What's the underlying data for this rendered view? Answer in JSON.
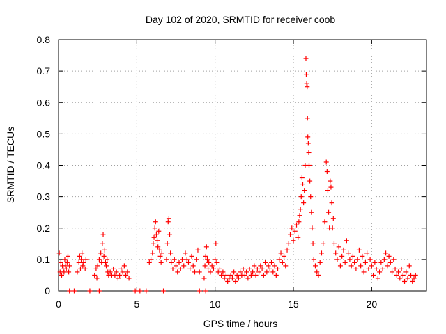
{
  "chart_data": {
    "type": "scatter",
    "title": "Day 102 of 2020, SRMTID for receiver coob",
    "xlabel": "GPS time / hours",
    "ylabel": "SRMTID / TECUs",
    "xlim": [
      0,
      23.5
    ],
    "ylim": [
      0,
      0.8
    ],
    "xticks": [
      0,
      5,
      10,
      15,
      20
    ],
    "yticks": [
      0,
      0.1,
      0.2,
      0.3,
      0.4,
      0.5,
      0.6,
      0.7,
      0.8
    ],
    "xtick_labels": [
      "0",
      "5",
      "10",
      "15",
      "20"
    ],
    "ytick_labels": [
      "0",
      "0.1",
      "0.2",
      "0.3",
      "0.4",
      "0.5",
      "0.6",
      "0.7",
      "0.8"
    ],
    "grid": true,
    "marker": "+",
    "series": [
      {
        "name": "SRMTID",
        "color": "#ff0000",
        "points": [
          [
            0.05,
            0.12
          ],
          [
            0.1,
            0.06
          ],
          [
            0.15,
            0.09
          ],
          [
            0.2,
            0.05
          ],
          [
            0.25,
            0.08
          ],
          [
            0.3,
            0.07
          ],
          [
            0.35,
            0.06
          ],
          [
            0.4,
            0.1
          ],
          [
            0.45,
            0.08
          ],
          [
            0.5,
            0.07
          ],
          [
            0.55,
            0.09
          ],
          [
            0.6,
            0.11
          ],
          [
            0.65,
            0.06
          ],
          [
            0.7,
            0.08
          ],
          [
            1.2,
            0.06
          ],
          [
            1.3,
            0.09
          ],
          [
            1.35,
            0.11
          ],
          [
            1.4,
            0.07
          ],
          [
            1.45,
            0.1
          ],
          [
            1.5,
            0.12
          ],
          [
            1.55,
            0.08
          ],
          [
            1.6,
            0.09
          ],
          [
            1.7,
            0.07
          ],
          [
            1.75,
            0.1
          ],
          [
            2.3,
            0.05
          ],
          [
            2.4,
            0.07
          ],
          [
            2.45,
            0.04
          ],
          [
            2.5,
            0.08
          ],
          [
            2.6,
            0.1
          ],
          [
            2.7,
            0.12
          ],
          [
            2.75,
            0.09
          ],
          [
            2.8,
            0.15
          ],
          [
            2.85,
            0.18
          ],
          [
            2.9,
            0.11
          ],
          [
            2.95,
            0.13
          ],
          [
            3.0,
            0.09
          ],
          [
            3.05,
            0.08
          ],
          [
            3.1,
            0.1
          ],
          [
            3.15,
            0.06
          ],
          [
            3.2,
            0.05
          ],
          [
            3.3,
            0.06
          ],
          [
            3.4,
            0.05
          ],
          [
            3.5,
            0.07
          ],
          [
            3.6,
            0.05
          ],
          [
            3.7,
            0.06
          ],
          [
            3.8,
            0.04
          ],
          [
            3.9,
            0.05
          ],
          [
            4.0,
            0.07
          ],
          [
            4.1,
            0.06
          ],
          [
            4.2,
            0.08
          ],
          [
            4.3,
            0.05
          ],
          [
            4.4,
            0.06
          ],
          [
            4.5,
            0.04
          ],
          [
            5.8,
            0.09
          ],
          [
            5.9,
            0.1
          ],
          [
            6.0,
            0.12
          ],
          [
            6.05,
            0.15
          ],
          [
            6.1,
            0.17
          ],
          [
            6.15,
            0.2
          ],
          [
            6.2,
            0.22
          ],
          [
            6.25,
            0.18
          ],
          [
            6.3,
            0.16
          ],
          [
            6.35,
            0.14
          ],
          [
            6.4,
            0.19
          ],
          [
            6.45,
            0.13
          ],
          [
            6.5,
            0.11
          ],
          [
            6.55,
            0.09
          ],
          [
            6.6,
            0.12
          ],
          [
            6.9,
            0.1
          ],
          [
            6.95,
            0.15
          ],
          [
            7.0,
            0.22
          ],
          [
            7.05,
            0.23
          ],
          [
            7.1,
            0.18
          ],
          [
            7.15,
            0.12
          ],
          [
            7.2,
            0.09
          ],
          [
            7.3,
            0.07
          ],
          [
            7.4,
            0.1
          ],
          [
            7.5,
            0.08
          ],
          [
            7.6,
            0.06
          ],
          [
            7.7,
            0.09
          ],
          [
            7.8,
            0.07
          ],
          [
            7.9,
            0.1
          ],
          [
            8.0,
            0.08
          ],
          [
            8.1,
            0.12
          ],
          [
            8.2,
            0.1
          ],
          [
            8.3,
            0.09
          ],
          [
            8.4,
            0.07
          ],
          [
            8.5,
            0.11
          ],
          [
            8.6,
            0.08
          ],
          [
            8.7,
            0.06
          ],
          [
            8.8,
            0.1
          ],
          [
            8.9,
            0.13
          ],
          [
            9.0,
            0.06
          ],
          [
            9.3,
            0.04
          ],
          [
            9.35,
            0.08
          ],
          [
            9.4,
            0.11
          ],
          [
            9.45,
            0.14
          ],
          [
            9.5,
            0.1
          ],
          [
            9.55,
            0.07
          ],
          [
            9.6,
            0.09
          ],
          [
            9.7,
            0.06
          ],
          [
            9.8,
            0.08
          ],
          [
            9.9,
            0.07
          ],
          [
            10.0,
            0.1
          ],
          [
            10.05,
            0.15
          ],
          [
            10.1,
            0.09
          ],
          [
            10.2,
            0.06
          ],
          [
            10.3,
            0.07
          ],
          [
            10.4,
            0.05
          ],
          [
            10.5,
            0.06
          ],
          [
            10.6,
            0.04
          ],
          [
            10.7,
            0.05
          ],
          [
            10.8,
            0.03
          ],
          [
            10.9,
            0.04
          ],
          [
            11.0,
            0.05
          ],
          [
            11.1,
            0.04
          ],
          [
            11.2,
            0.06
          ],
          [
            11.3,
            0.03
          ],
          [
            11.4,
            0.05
          ],
          [
            11.5,
            0.04
          ],
          [
            11.6,
            0.06
          ],
          [
            11.7,
            0.05
          ],
          [
            11.8,
            0.07
          ],
          [
            11.9,
            0.05
          ],
          [
            12.0,
            0.06
          ],
          [
            12.1,
            0.04
          ],
          [
            12.2,
            0.07
          ],
          [
            12.3,
            0.05
          ],
          [
            12.4,
            0.06
          ],
          [
            12.5,
            0.08
          ],
          [
            12.6,
            0.05
          ],
          [
            12.7,
            0.07
          ],
          [
            12.8,
            0.06
          ],
          [
            12.9,
            0.08
          ],
          [
            13.0,
            0.07
          ],
          [
            13.1,
            0.05
          ],
          [
            13.2,
            0.09
          ],
          [
            13.3,
            0.06
          ],
          [
            13.4,
            0.08
          ],
          [
            13.5,
            0.07
          ],
          [
            13.6,
            0.09
          ],
          [
            13.7,
            0.06
          ],
          [
            13.8,
            0.08
          ],
          [
            13.9,
            0.05
          ],
          [
            14.0,
            0.07
          ],
          [
            14.1,
            0.1
          ],
          [
            14.2,
            0.12
          ],
          [
            14.3,
            0.09
          ],
          [
            14.4,
            0.11
          ],
          [
            14.5,
            0.08
          ],
          [
            14.6,
            0.13
          ],
          [
            14.7,
            0.15
          ],
          [
            14.8,
            0.18
          ],
          [
            14.9,
            0.2
          ],
          [
            15.0,
            0.16
          ],
          [
            15.1,
            0.19
          ],
          [
            15.2,
            0.21
          ],
          [
            15.3,
            0.17
          ],
          [
            15.35,
            0.22
          ],
          [
            15.4,
            0.24
          ],
          [
            15.45,
            0.26
          ],
          [
            15.5,
            0.3
          ],
          [
            15.55,
            0.36
          ],
          [
            15.6,
            0.34
          ],
          [
            15.65,
            0.28
          ],
          [
            15.7,
            0.32
          ],
          [
            15.75,
            0.4
          ],
          [
            15.8,
            0.74
          ],
          [
            15.82,
            0.69
          ],
          [
            15.85,
            0.66
          ],
          [
            15.88,
            0.65
          ],
          [
            15.9,
            0.55
          ],
          [
            15.92,
            0.49
          ],
          [
            15.95,
            0.47
          ],
          [
            15.98,
            0.44
          ],
          [
            16.0,
            0.4
          ],
          [
            16.05,
            0.35
          ],
          [
            16.1,
            0.3
          ],
          [
            16.15,
            0.25
          ],
          [
            16.2,
            0.2
          ],
          [
            16.25,
            0.15
          ],
          [
            16.3,
            0.1
          ],
          [
            16.4,
            0.08
          ],
          [
            16.5,
            0.06
          ],
          [
            16.6,
            0.05
          ],
          [
            16.7,
            0.09
          ],
          [
            16.8,
            0.12
          ],
          [
            16.9,
            0.15
          ],
          [
            17.0,
            0.22
          ],
          [
            17.1,
            0.41
          ],
          [
            17.15,
            0.38
          ],
          [
            17.2,
            0.32
          ],
          [
            17.25,
            0.25
          ],
          [
            17.3,
            0.2
          ],
          [
            17.35,
            0.35
          ],
          [
            17.4,
            0.33
          ],
          [
            17.45,
            0.28
          ],
          [
            17.5,
            0.2
          ],
          [
            17.55,
            0.23
          ],
          [
            17.6,
            0.15
          ],
          [
            17.7,
            0.12
          ],
          [
            17.8,
            0.1
          ],
          [
            17.9,
            0.14
          ],
          [
            18.0,
            0.08
          ],
          [
            18.1,
            0.11
          ],
          [
            18.2,
            0.13
          ],
          [
            18.3,
            0.09
          ],
          [
            18.4,
            0.16
          ],
          [
            18.5,
            0.12
          ],
          [
            18.6,
            0.1
          ],
          [
            18.7,
            0.08
          ],
          [
            18.8,
            0.11
          ],
          [
            18.9,
            0.09
          ],
          [
            19.0,
            0.07
          ],
          [
            19.1,
            0.1
          ],
          [
            19.2,
            0.13
          ],
          [
            19.3,
            0.08
          ],
          [
            19.4,
            0.11
          ],
          [
            19.5,
            0.06
          ],
          [
            19.6,
            0.09
          ],
          [
            19.7,
            0.12
          ],
          [
            19.8,
            0.07
          ],
          [
            19.9,
            0.1
          ],
          [
            20.0,
            0.08
          ],
          [
            20.1,
            0.05
          ],
          [
            20.2,
            0.09
          ],
          [
            20.3,
            0.07
          ],
          [
            20.4,
            0.04
          ],
          [
            20.5,
            0.06
          ],
          [
            20.6,
            0.09
          ],
          [
            20.7,
            0.07
          ],
          [
            20.8,
            0.1
          ],
          [
            20.9,
            0.12
          ],
          [
            21.0,
            0.08
          ],
          [
            21.1,
            0.11
          ],
          [
            21.2,
            0.09
          ],
          [
            21.3,
            0.06
          ],
          [
            21.4,
            0.1
          ],
          [
            21.5,
            0.07
          ],
          [
            21.6,
            0.05
          ],
          [
            21.7,
            0.06
          ],
          [
            21.8,
            0.04
          ],
          [
            21.9,
            0.07
          ],
          [
            22.0,
            0.05
          ],
          [
            22.1,
            0.03
          ],
          [
            22.2,
            0.06
          ],
          [
            22.3,
            0.04
          ],
          [
            22.4,
            0.08
          ],
          [
            22.5,
            0.05
          ],
          [
            22.6,
            0.03
          ],
          [
            22.7,
            0.04
          ],
          [
            22.8,
            0.05
          ],
          [
            0.7,
            0.0
          ],
          [
            1.0,
            0.0
          ],
          [
            2.0,
            0.0
          ],
          [
            2.6,
            0.0
          ],
          [
            4.9,
            0.0
          ],
          [
            5.2,
            0.0
          ],
          [
            5.6,
            0.0
          ],
          [
            6.7,
            0.0
          ],
          [
            9.0,
            0.0
          ],
          [
            9.4,
            0.0
          ]
        ]
      }
    ]
  }
}
